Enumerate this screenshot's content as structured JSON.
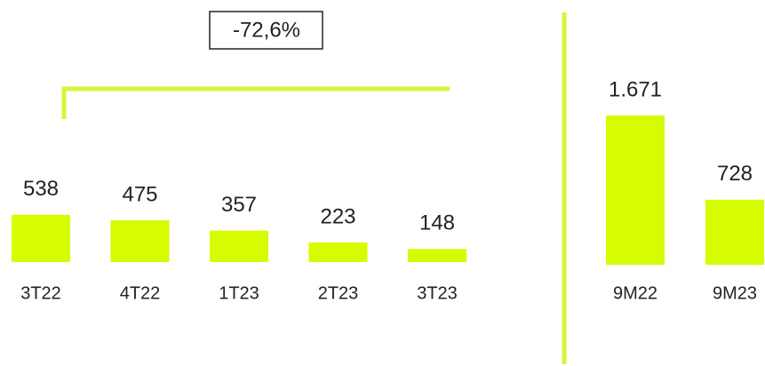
{
  "chart_data": [
    {
      "type": "bar",
      "categories": [
        "3T22",
        "4T22",
        "1T23",
        "2T23",
        "3T23"
      ],
      "values": [
        538,
        475,
        357,
        223,
        148
      ],
      "color": "#d7fb00",
      "annotation": "-72,6%"
    },
    {
      "type": "bar",
      "categories": [
        "9M22",
        "9M23"
      ],
      "values": [
        1671,
        728
      ],
      "value_labels": [
        "1.671",
        "728"
      ],
      "color": "#d7fb00"
    }
  ]
}
